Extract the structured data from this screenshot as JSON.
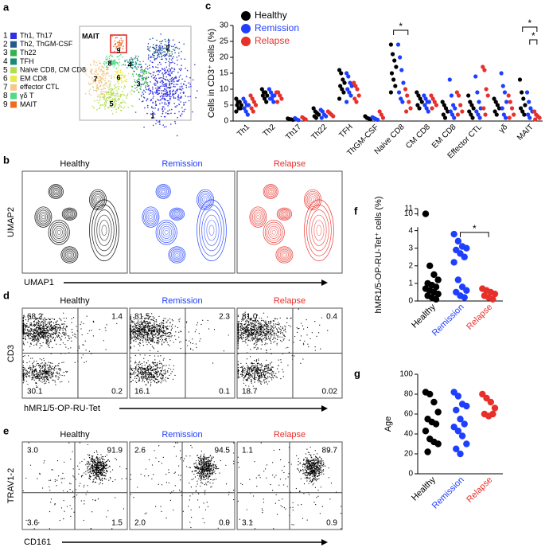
{
  "panel_labels": [
    "a",
    "b",
    "c",
    "d",
    "e",
    "f",
    "g"
  ],
  "panel_a": {
    "clusters": [
      {
        "number": "1",
        "label": "Th1, Th17",
        "color": "#3030e0"
      },
      {
        "number": "2",
        "label": "Th2, ThGM-CSF",
        "color": "#1f5c8c"
      },
      {
        "number": "3",
        "label": "Th22",
        "color": "#34b34a"
      },
      {
        "number": "4",
        "label": "TFH",
        "color": "#178a78"
      },
      {
        "number": "5",
        "label": "Naive CD8, CM CD8",
        "color": "#b5dc55"
      },
      {
        "number": "6",
        "label": "EM CD8",
        "color": "#eaea4a"
      },
      {
        "number": "7",
        "label": "effector CTL",
        "color": "#f6c888"
      },
      {
        "number": "8",
        "label": "γδ T",
        "color": "#52d98a"
      },
      {
        "number": "9",
        "label": "MAIT",
        "color": "#f06a22"
      }
    ]
  },
  "panel_b": {
    "y_label": "UMAP2",
    "x_label": "UMAP1"
  },
  "panel_d": {
    "y_label": "CD3",
    "x_label": "hMR1/5-OP-RU-Tet",
    "quadrants": [
      [
        "68.2",
        "1.4",
        "30.1",
        "0.2"
      ],
      [
        "81.5",
        "2.3",
        "16.1",
        "0.1"
      ],
      [
        "81.0",
        "0.4",
        "18.7",
        "0.02"
      ]
    ]
  },
  "panel_e": {
    "y_label": "TRAV1-2",
    "x_label": "CD161",
    "quadrants": [
      [
        "3.0",
        "91.9",
        "3.6",
        "1.5"
      ],
      [
        "2.6",
        "94.5",
        "2.0",
        "0.9"
      ],
      [
        "1.1",
        "89.7",
        "3.1",
        "0.9"
      ]
    ]
  },
  "chart_data": [
    {
      "type": "strip",
      "y_label": "Cells in CD3⁺ cells (%)",
      "categories": [
        "Th1",
        "Th2",
        "Th17",
        "Th22",
        "TFH",
        "ThGM-CSF",
        "Naive CD8",
        "CM CD8",
        "EM CD8",
        "Effector CTL",
        "γδ",
        "MAIT"
      ],
      "series": [
        {
          "name": "Healthy",
          "color": "#000000",
          "values": [
            [
              7,
              6,
              6,
              5,
              5,
              4,
              4,
              3
            ],
            [
              10,
              9,
              9,
              8,
              8,
              7,
              6
            ],
            [
              0.8,
              0.6,
              0.5,
              0.4
            ],
            [
              4,
              3,
              2.5,
              2,
              1.5,
              1
            ],
            [
              16,
              15,
              13,
              12,
              11,
              10,
              9,
              7
            ],
            [
              1.5,
              1,
              0.8,
              0.5
            ],
            [
              24,
              21,
              19,
              17,
              15,
              13,
              11,
              9
            ],
            [
              9,
              8,
              7,
              6,
              5,
              4
            ],
            [
              6,
              5,
              4,
              3,
              2,
              1
            ],
            [
              8,
              6,
              5,
              4,
              3,
              2,
              1
            ],
            [
              7,
              6,
              5,
              4,
              3,
              2
            ],
            [
              13,
              9,
              7,
              5,
              4,
              3,
              2
            ]
          ]
        },
        {
          "name": "Remission",
          "color": "#1f3fff",
          "values": [
            [
              7,
              6,
              5,
              5,
              4,
              3,
              2
            ],
            [
              10,
              9,
              8,
              8,
              7,
              7,
              6
            ],
            [
              0.9,
              0.5,
              0.3
            ],
            [
              3.5,
              3,
              2,
              1.5,
              1
            ],
            [
              15,
              14,
              12,
              11,
              10,
              9,
              8,
              6
            ],
            [
              1.2,
              0.9,
              0.6,
              0.4
            ],
            [
              24,
              20,
              16,
              12,
              9,
              7,
              6
            ],
            [
              8,
              7,
              6,
              6,
              5,
              4,
              3
            ],
            [
              13,
              8,
              5,
              4,
              3,
              2,
              1
            ],
            [
              14,
              9,
              6,
              4,
              3,
              2,
              1
            ],
            [
              15,
              11,
              9,
              6,
              4,
              2,
              1
            ],
            [
              9,
              6,
              4,
              3,
              2,
              1
            ]
          ]
        },
        {
          "name": "Relapse",
          "color": "#e8302a",
          "values": [
            [
              8,
              7,
              6,
              5,
              4,
              3
            ],
            [
              9,
              9,
              8,
              7,
              6
            ],
            [
              1.2,
              0.8,
              0.5
            ],
            [
              3,
              2.5,
              2,
              1.5
            ],
            [
              12,
              11,
              10,
              8,
              7,
              6
            ],
            [
              3,
              2,
              1
            ],
            [
              10,
              8,
              6,
              4,
              3
            ],
            [
              8,
              7,
              6,
              5,
              4
            ],
            [
              9,
              8,
              5,
              3,
              2
            ],
            [
              17,
              16,
              10,
              8,
              4,
              2
            ],
            [
              8,
              6,
              4,
              2,
              1
            ],
            [
              3,
              2,
              1.5,
              1,
              0.5
            ]
          ]
        }
      ],
      "ylim": [
        0,
        30
      ],
      "yticks": [
        0,
        5,
        10,
        15,
        20,
        25,
        30
      ],
      "significance": [
        {
          "label": "*",
          "category": 6,
          "pair": [
            0,
            2
          ]
        },
        {
          "label": "*",
          "category": 11,
          "pair": [
            0,
            2
          ]
        },
        {
          "label": "*",
          "category": 11,
          "pair": [
            1,
            2
          ]
        }
      ]
    },
    {
      "type": "strip",
      "y_label": "hMR1/5-OP-RU-Tet⁺ cells (%)",
      "categories": [
        "Healthy",
        "Remission",
        "Relapse"
      ],
      "colors": [
        "#000000",
        "#1f3fff",
        "#e8302a"
      ],
      "values": [
        [
          10,
          2,
          1.5,
          1.2,
          1,
          0.9,
          0.8,
          0.7,
          0.6,
          0.5,
          0.4,
          0.3,
          0.2,
          0.1
        ],
        [
          3.8,
          3.4,
          3.1,
          3,
          2.9,
          2.7,
          2.5,
          2.2,
          1.2,
          0.8,
          0.6,
          0.5,
          0.3,
          0.2
        ],
        [
          0.7,
          0.6,
          0.5,
          0.4,
          0.3,
          0.2,
          0.1
        ]
      ],
      "ylim": [
        0,
        11
      ],
      "yticks": [
        0,
        1,
        2,
        3,
        4,
        10,
        11
      ],
      "axis_break": [
        4.2,
        9.6
      ],
      "significance": [
        {
          "label": "*",
          "pair": [
            1,
            2
          ]
        }
      ]
    },
    {
      "type": "strip",
      "y_label": "Age",
      "categories": [
        "Healthy",
        "Remission",
        "Relapse"
      ],
      "colors": [
        "#000000",
        "#1f3fff",
        "#e8302a"
      ],
      "values": [
        [
          82,
          80,
          72,
          62,
          55,
          52,
          50,
          43,
          35,
          32,
          30,
          22
        ],
        [
          82,
          78,
          70,
          68,
          64,
          55,
          50,
          47,
          43,
          38,
          30,
          25,
          20
        ],
        [
          80,
          76,
          72,
          66,
          60,
          58,
          60
        ]
      ],
      "ylim": [
        0,
        100
      ],
      "yticks": [
        0,
        20,
        40,
        60,
        80,
        100
      ]
    }
  ]
}
